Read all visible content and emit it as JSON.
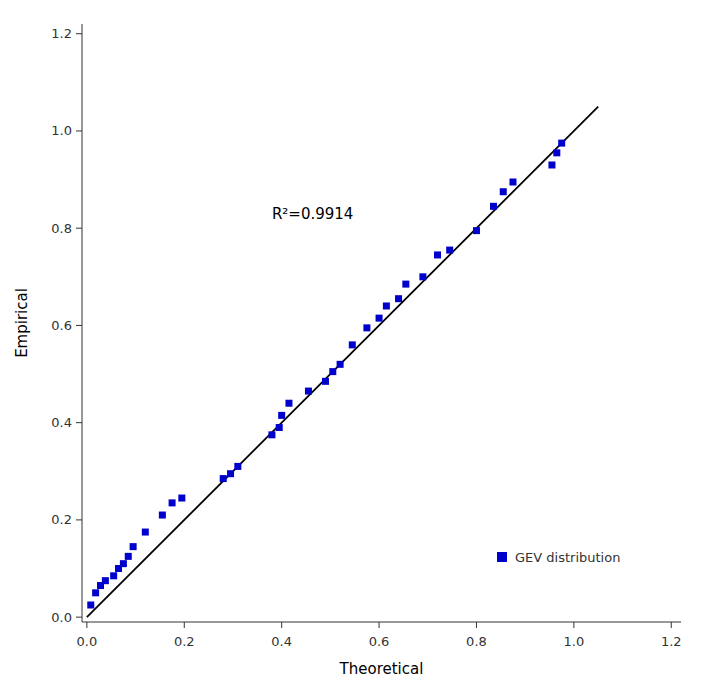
{
  "chart_data": {
    "type": "scatter",
    "x_label": "Theoretical",
    "y_label": "Empirical",
    "x": [
      0.008,
      0.018,
      0.028,
      0.038,
      0.055,
      0.065,
      0.075,
      0.085,
      0.095,
      0.12,
      0.155,
      0.175,
      0.195,
      0.28,
      0.295,
      0.31,
      0.38,
      0.395,
      0.4,
      0.415,
      0.455,
      0.49,
      0.505,
      0.52,
      0.545,
      0.575,
      0.6,
      0.615,
      0.64,
      0.655,
      0.69,
      0.72,
      0.745,
      0.8,
      0.835,
      0.855,
      0.875,
      0.955,
      0.965,
      0.975
    ],
    "series": [
      {
        "name": "GEV distribution",
        "type": "scatter",
        "marker": "square",
        "color": "#0000cc",
        "values": [
          0.025,
          0.05,
          0.065,
          0.075,
          0.085,
          0.1,
          0.11,
          0.125,
          0.145,
          0.175,
          0.21,
          0.235,
          0.245,
          0.285,
          0.295,
          0.31,
          0.375,
          0.39,
          0.415,
          0.44,
          0.465,
          0.485,
          0.505,
          0.52,
          0.56,
          0.595,
          0.615,
          0.64,
          0.655,
          0.685,
          0.7,
          0.745,
          0.755,
          0.795,
          0.845,
          0.875,
          0.895,
          0.93,
          0.955,
          0.975
        ]
      },
      {
        "type": "line",
        "line_style": "solid",
        "color": "#000000",
        "x": [
          0.0,
          1.05
        ],
        "values": [
          0.0,
          1.05
        ]
      }
    ],
    "annotations": [
      {
        "text": "R²=0.9914",
        "x": 0.38,
        "y": 0.83
      }
    ],
    "xlim": [
      -0.01,
      1.22
    ],
    "ylim": [
      -0.01,
      1.22
    ],
    "xticks": [
      {
        "value": 0.0,
        "label": "0.0"
      },
      0.2,
      0.4,
      0.6,
      0.8,
      {
        "value": 1.0,
        "label": "1.0"
      },
      1.2
    ],
    "yticks": [
      {
        "value": 0.0,
        "label": "0.0"
      },
      0.2,
      0.4,
      0.6,
      0.8,
      {
        "value": 1.0,
        "label": "1.0"
      },
      1.2
    ],
    "grid": false,
    "legend": "lower right"
  }
}
